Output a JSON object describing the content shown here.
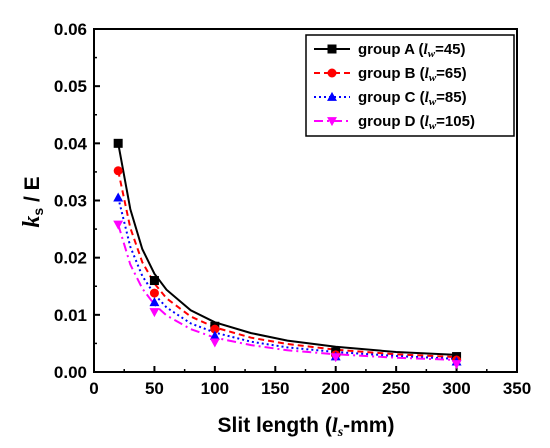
{
  "chart_data": {
    "type": "scatter",
    "title": "",
    "xlabel": {
      "main": "Slit length (",
      "var": "l",
      "sub": "s",
      "tail": "-mm)"
    },
    "ylabel": {
      "var": "k",
      "sub": "s",
      "tail": " / E"
    },
    "xlim": [
      0,
      350
    ],
    "ylim": [
      0,
      0.06
    ],
    "x_ticks": [
      0,
      50,
      100,
      150,
      200,
      250,
      300,
      350
    ],
    "x_tick_labels": [
      "0",
      "50",
      "100",
      "150",
      "200",
      "250",
      "300",
      "350"
    ],
    "y_ticks": [
      0,
      0.01,
      0.02,
      0.03,
      0.04,
      0.05,
      0.06
    ],
    "y_tick_labels": [
      "0.00",
      "0.01",
      "0.02",
      "0.03",
      "0.04",
      "0.05",
      "0.06"
    ],
    "grid": false,
    "legend_position": "top-right",
    "series": [
      {
        "name": {
          "main": "group A (",
          "var": "l",
          "sub": "w",
          "tail": "=45)"
        },
        "color": "#000000",
        "marker": "square",
        "dash": "solid",
        "x": [
          20,
          50,
          100,
          200,
          300
        ],
        "y": [
          0.04,
          0.016,
          0.008,
          0.0035,
          0.0027
        ],
        "fit_curve": [
          [
            20,
            0.04
          ],
          [
            30,
            0.0285
          ],
          [
            40,
            0.0215
          ],
          [
            50,
            0.0172
          ],
          [
            60,
            0.0144
          ],
          [
            80,
            0.0108
          ],
          [
            100,
            0.0087
          ],
          [
            130,
            0.0068
          ],
          [
            160,
            0.0055
          ],
          [
            200,
            0.0044
          ],
          [
            250,
            0.0035
          ],
          [
            300,
            0.003
          ]
        ]
      },
      {
        "name": {
          "main": "group B (",
          "var": "l",
          "sub": "w",
          "tail": "=65)"
        },
        "color": "#ff0000",
        "marker": "circle",
        "dash": "dashed",
        "x": [
          20,
          50,
          100,
          200,
          300
        ],
        "y": [
          0.0352,
          0.0138,
          0.0075,
          0.003,
          0.0021
        ],
        "fit_curve": [
          [
            20,
            0.0352
          ],
          [
            30,
            0.0252
          ],
          [
            40,
            0.0192
          ],
          [
            50,
            0.0155
          ],
          [
            60,
            0.0129
          ],
          [
            80,
            0.0097
          ],
          [
            100,
            0.0078
          ],
          [
            130,
            0.006
          ],
          [
            160,
            0.0049
          ],
          [
            200,
            0.0039
          ],
          [
            250,
            0.0031
          ],
          [
            300,
            0.0026
          ]
        ]
      },
      {
        "name": {
          "main": "group C (",
          "var": "l",
          "sub": "w",
          "tail": "=85)"
        },
        "color": "#0000ff",
        "marker": "triangle-up",
        "dash": "dotted",
        "x": [
          20,
          50,
          100,
          200,
          300
        ],
        "y": [
          0.0305,
          0.0122,
          0.0063,
          0.0027,
          0.0018
        ],
        "fit_curve": [
          [
            20,
            0.0305
          ],
          [
            30,
            0.0219
          ],
          [
            40,
            0.0168
          ],
          [
            50,
            0.0136
          ],
          [
            60,
            0.0113
          ],
          [
            80,
            0.0085
          ],
          [
            100,
            0.0069
          ],
          [
            130,
            0.0053
          ],
          [
            160,
            0.0043
          ],
          [
            200,
            0.0035
          ],
          [
            250,
            0.0028
          ],
          [
            300,
            0.0023
          ]
        ]
      },
      {
        "name": {
          "main": "group D (",
          "var": "l",
          "sub": "w",
          "tail": "=105)"
        },
        "color": "#ff00ff",
        "marker": "triangle-down",
        "dash": "dashdot",
        "x": [
          20,
          50,
          100,
          200,
          300
        ],
        "y": [
          0.0258,
          0.0105,
          0.0052,
          0.0026,
          0.0014
        ],
        "fit_curve": [
          [
            20,
            0.0258
          ],
          [
            30,
            0.0188
          ],
          [
            40,
            0.0146
          ],
          [
            50,
            0.0118
          ],
          [
            60,
            0.0099
          ],
          [
            80,
            0.0075
          ],
          [
            100,
            0.006
          ],
          [
            130,
            0.0047
          ],
          [
            160,
            0.0038
          ],
          [
            200,
            0.0031
          ],
          [
            250,
            0.0025
          ],
          [
            300,
            0.0021
          ]
        ]
      }
    ]
  }
}
